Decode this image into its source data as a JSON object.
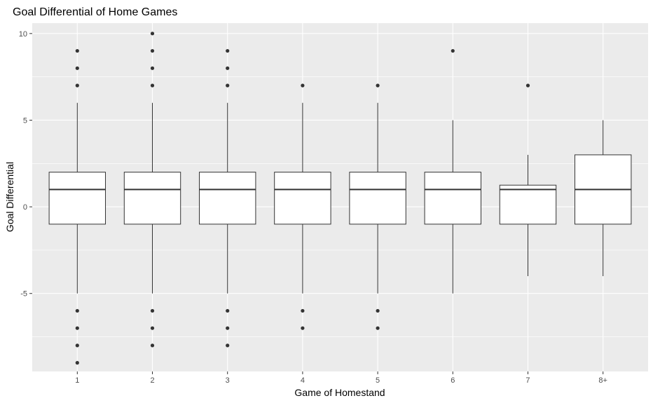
{
  "chart_data": {
    "type": "boxplot",
    "title": "Goal Differential of Home Games",
    "xlabel": "Game of Homestand",
    "ylabel": "Goal Differential",
    "categories": [
      "1",
      "2",
      "3",
      "4",
      "5",
      "6",
      "7",
      "8+"
    ],
    "ylim": [
      -9.5,
      10.6
    ],
    "yticks": [
      -5,
      0,
      5,
      10
    ],
    "grid": true,
    "boxes": [
      {
        "category": "1",
        "whisker_low": -5,
        "q1": -1,
        "median": 1,
        "q3": 2,
        "whisker_high": 6,
        "outliers": [
          9,
          8,
          7,
          -6,
          -7,
          -8,
          -9
        ]
      },
      {
        "category": "2",
        "whisker_low": -5,
        "q1": -1,
        "median": 1,
        "q3": 2,
        "whisker_high": 6,
        "outliers": [
          10,
          9,
          8,
          7,
          -6,
          -7,
          -8
        ]
      },
      {
        "category": "3",
        "whisker_low": -5,
        "q1": -1,
        "median": 1,
        "q3": 2,
        "whisker_high": 6,
        "outliers": [
          9,
          8,
          7,
          -6,
          -7,
          -8
        ]
      },
      {
        "category": "4",
        "whisker_low": -5,
        "q1": -1,
        "median": 1,
        "q3": 2,
        "whisker_high": 6,
        "outliers": [
          7,
          -6,
          -7
        ]
      },
      {
        "category": "5",
        "whisker_low": -5,
        "q1": -1,
        "median": 1,
        "q3": 2,
        "whisker_high": 6,
        "outliers": [
          7,
          -6,
          -7
        ]
      },
      {
        "category": "6",
        "whisker_low": -5,
        "q1": -1,
        "median": 1,
        "q3": 2,
        "whisker_high": 5,
        "outliers": [
          9
        ]
      },
      {
        "category": "7",
        "whisker_low": -4,
        "q1": -1,
        "median": 1,
        "q3": 1.25,
        "whisker_high": 3,
        "outliers": [
          7
        ]
      },
      {
        "category": "8+",
        "whisker_low": -4,
        "q1": -1,
        "median": 1,
        "q3": 3,
        "whisker_high": 5,
        "outliers": []
      }
    ],
    "colors": {
      "panel_background": "#ebebeb",
      "grid": "#ffffff",
      "box_fill": "#ffffff",
      "box_stroke": "#333333",
      "outlier": "#333333"
    }
  }
}
